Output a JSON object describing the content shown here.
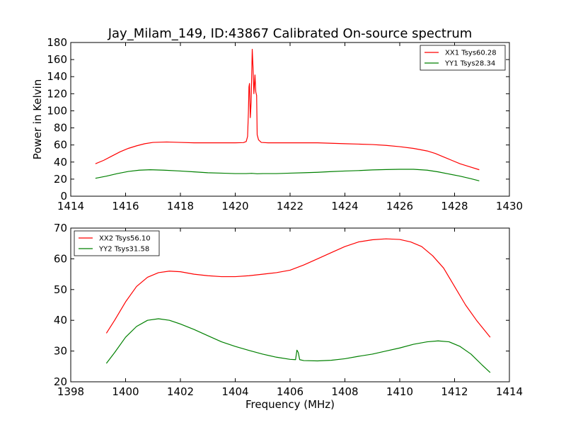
{
  "figure": {
    "title": "Jay_Milam_149, ID:43867 Calibrated On-source spectrum"
  },
  "chart_data": [
    {
      "type": "line",
      "title": "Jay_Milam_149, ID:43867 Calibrated On-source spectrum",
      "xlabel": "",
      "ylabel": "Power in Kelvin",
      "xlim": [
        1414,
        1430
      ],
      "ylim": [
        0,
        180
      ],
      "xticks": [
        "1414",
        "1416",
        "1418",
        "1420",
        "1422",
        "1424",
        "1426",
        "1428",
        "1430"
      ],
      "yticks": [
        "0",
        "20",
        "40",
        "60",
        "80",
        "100",
        "120",
        "140",
        "160",
        "180"
      ],
      "grid": false,
      "legend_position": "top-right",
      "series": [
        {
          "name": "XX1 Tsys60.28",
          "color": "#ff0000",
          "x": [
            1414.9,
            1415.2,
            1415.5,
            1415.8,
            1416.1,
            1416.4,
            1416.7,
            1417.0,
            1417.5,
            1418.0,
            1418.5,
            1419.0,
            1419.5,
            1420.0,
            1420.3,
            1420.4,
            1420.45,
            1420.48,
            1420.5,
            1420.52,
            1420.55,
            1420.58,
            1420.62,
            1420.65,
            1420.68,
            1420.72,
            1420.75,
            1420.78,
            1420.8,
            1420.85,
            1420.95,
            1421.2,
            1421.5,
            1422.0,
            1422.5,
            1423.0,
            1423.5,
            1424.0,
            1424.5,
            1425.0,
            1425.5,
            1426.0,
            1426.5,
            1427.0,
            1427.3,
            1427.6,
            1427.9,
            1428.2,
            1428.5,
            1428.9
          ],
          "y": [
            38,
            42,
            47,
            52,
            56,
            59,
            61.5,
            63,
            63.5,
            63,
            62.5,
            62.5,
            62.5,
            62.5,
            62.8,
            64,
            70,
            98,
            128,
            132,
            92,
            110,
            172,
            150,
            120,
            142,
            122,
            118,
            72,
            66,
            63,
            62.5,
            62.5,
            62.5,
            62.5,
            62.5,
            62,
            61.5,
            61,
            60.5,
            59.5,
            58,
            56,
            53,
            50,
            46,
            42,
            38,
            35,
            31
          ]
        },
        {
          "name": "YY1 Tsys28.34",
          "color": "#008000",
          "x": [
            1414.9,
            1415.3,
            1415.7,
            1416.1,
            1416.5,
            1416.9,
            1417.4,
            1418.0,
            1418.5,
            1419.0,
            1419.5,
            1420.0,
            1420.4,
            1420.6,
            1420.8,
            1421.0,
            1421.5,
            1422.0,
            1422.5,
            1423.0,
            1423.5,
            1424.0,
            1424.5,
            1425.0,
            1425.5,
            1426.0,
            1426.5,
            1427.0,
            1427.4,
            1427.8,
            1428.2,
            1428.6,
            1428.9
          ],
          "y": [
            21,
            23.5,
            26.5,
            29,
            30.5,
            31,
            30.5,
            29.5,
            28.5,
            27.5,
            27,
            26.5,
            26.5,
            26.8,
            26.3,
            26.5,
            26.5,
            27,
            27.5,
            28,
            28.8,
            29.5,
            30,
            30.8,
            31.2,
            31.5,
            31.5,
            30.5,
            28.5,
            26,
            23.5,
            20.5,
            18
          ]
        }
      ]
    },
    {
      "type": "line",
      "title": "",
      "xlabel": "Frequency (MHz)",
      "ylabel": "",
      "xlim": [
        1398,
        1414
      ],
      "ylim": [
        20,
        70
      ],
      "xticks": [
        "1398",
        "1400",
        "1402",
        "1404",
        "1406",
        "1408",
        "1410",
        "1412",
        "1414"
      ],
      "yticks": [
        "20",
        "30",
        "40",
        "50",
        "60",
        "70"
      ],
      "grid": false,
      "legend_position": "top-left",
      "series": [
        {
          "name": "XX2 Tsys56.10",
          "color": "#ff0000",
          "x": [
            1399.3,
            1399.6,
            1400.0,
            1400.4,
            1400.8,
            1401.2,
            1401.6,
            1402.0,
            1402.5,
            1403.0,
            1403.5,
            1404.0,
            1404.5,
            1405.0,
            1405.5,
            1406.0,
            1406.5,
            1407.0,
            1407.5,
            1408.0,
            1408.5,
            1409.0,
            1409.5,
            1410.0,
            1410.4,
            1410.8,
            1411.2,
            1411.6,
            1412.0,
            1412.4,
            1412.8,
            1413.3
          ],
          "y": [
            35.8,
            40,
            46,
            51,
            54,
            55.5,
            56,
            55.8,
            55,
            54.5,
            54.2,
            54.2,
            54.5,
            55,
            55.5,
            56.3,
            58,
            60,
            62,
            64,
            65.5,
            66.2,
            66.5,
            66.3,
            65.5,
            64,
            61,
            57,
            51,
            45,
            40,
            34.5
          ]
        },
        {
          "name": "YY2 Tsys31.58",
          "color": "#008000",
          "x": [
            1399.3,
            1399.6,
            1400.0,
            1400.4,
            1400.8,
            1401.2,
            1401.6,
            1402.0,
            1402.5,
            1403.0,
            1403.5,
            1404.0,
            1404.5,
            1405.0,
            1405.5,
            1406.0,
            1406.2,
            1406.25,
            1406.3,
            1406.35,
            1406.5,
            1407.0,
            1407.5,
            1408.0,
            1408.5,
            1409.0,
            1409.5,
            1410.0,
            1410.5,
            1411.0,
            1411.4,
            1411.8,
            1412.2,
            1412.6,
            1413.0,
            1413.3
          ],
          "y": [
            26,
            29.5,
            34.5,
            38,
            40,
            40.5,
            40,
            38.8,
            37,
            35,
            33,
            31.5,
            30.2,
            29,
            28,
            27.3,
            27.2,
            30.3,
            29.5,
            27.2,
            26.9,
            26.8,
            27,
            27.5,
            28.3,
            29,
            30,
            31,
            32.2,
            33,
            33.3,
            33,
            31.5,
            29,
            25.5,
            23
          ]
        }
      ]
    }
  ]
}
